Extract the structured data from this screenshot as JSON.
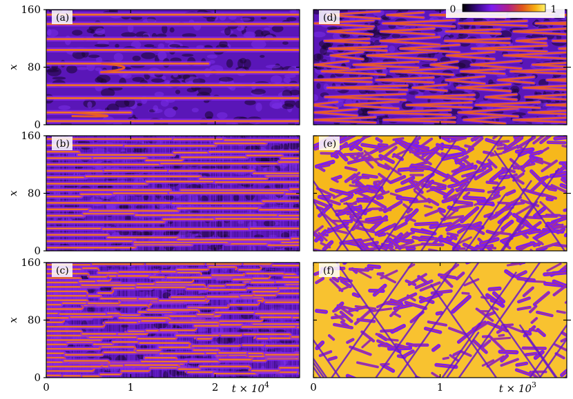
{
  "chart_data": [
    {
      "type": "heatmap",
      "panel": "(a)",
      "ylabel": "x",
      "x_ticks": [
        "0",
        "1",
        "2"
      ],
      "x_tick_values": [
        0,
        1,
        2
      ],
      "xlim": [
        0,
        3
      ],
      "y_ticks": [
        "0",
        "80",
        "160"
      ],
      "ylim": [
        0,
        160
      ],
      "pattern": "sparse-stripes",
      "stripes": [
        {
          "x": 153,
          "start": 0.0,
          "end": 3.0
        },
        {
          "x": 140,
          "start": 0.0,
          "end": 3.0
        },
        {
          "x": 119,
          "start": 0.0,
          "end": 3.0
        },
        {
          "x": 104,
          "start": 0.0,
          "end": 3.0
        },
        {
          "x": 85,
          "start": 0.0,
          "end": 1.92
        },
        {
          "x": 73,
          "start": 0.65,
          "end": 3.0
        },
        {
          "x": 55,
          "start": 0.0,
          "end": 3.0
        },
        {
          "x": 37,
          "start": 0.0,
          "end": 3.0
        },
        {
          "x": 17,
          "start": 0.0,
          "end": 1.0
        },
        {
          "x": 5,
          "start": 0.0,
          "end": 3.0
        }
      ]
    },
    {
      "type": "heatmap",
      "panel": "(b)",
      "ylabel": "x",
      "x_ticks": [
        "0",
        "1",
        "2"
      ],
      "x_tick_values": [
        0,
        1,
        2
      ],
      "xlim": [
        0,
        3
      ],
      "y_ticks": [
        "0",
        "80",
        "160"
      ],
      "ylim": [
        0,
        160
      ],
      "pattern": "dense-stripes",
      "stripe_count": 18,
      "seed": 11
    },
    {
      "type": "heatmap",
      "panel": "(c)",
      "ylabel": "x",
      "x_ticks": [
        "0",
        "1",
        "2"
      ],
      "x_tick_values": [
        0,
        1,
        2
      ],
      "xlim": [
        0,
        3
      ],
      "y_ticks": [
        "0",
        "80",
        "160"
      ],
      "ylim": [
        0,
        160
      ],
      "xlabel_base": "t × 10",
      "xlabel_exp": "4",
      "pattern": "fragmented-stripes",
      "stripe_count": 26,
      "seed": 23
    },
    {
      "type": "heatmap",
      "panel": "(d)",
      "x_ticks": [
        "1"
      ],
      "x_tick_values": [
        1
      ],
      "xlim": [
        0,
        2
      ],
      "ylim": [
        0,
        160
      ],
      "pattern": "chevrons",
      "seed": 31
    },
    {
      "type": "heatmap",
      "panel": "(e)",
      "x_ticks": [
        "1"
      ],
      "x_tick_values": [
        1
      ],
      "xlim": [
        0,
        2
      ],
      "ylim": [
        0,
        160
      ],
      "pattern": "mixed-turbulent",
      "seed": 47
    },
    {
      "type": "heatmap",
      "panel": "(f)",
      "x_ticks": [
        "0",
        "1"
      ],
      "x_tick_values": [
        0,
        1
      ],
      "xlim": [
        0,
        2
      ],
      "ylim": [
        0,
        160
      ],
      "xlabel_base": "t × 10",
      "xlabel_exp": "3",
      "pattern": "yellow-dominated",
      "seed": 59
    }
  ],
  "colorbar": {
    "min_label": "0",
    "max_label": "1",
    "colors": [
      "#000000",
      "#3a0a8a",
      "#7c1cf0",
      "#b0208a",
      "#e0551c",
      "#f8b012",
      "#fff36a"
    ]
  }
}
